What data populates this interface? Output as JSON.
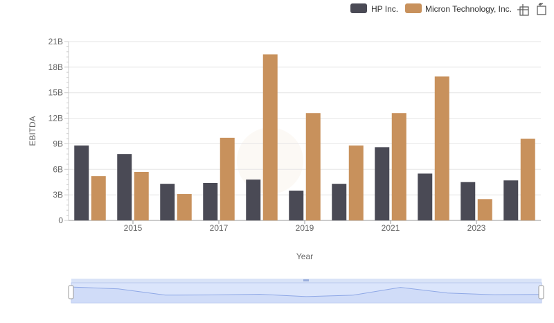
{
  "chart_data": {
    "type": "bar",
    "title": "",
    "xlabel": "Year",
    "ylabel": "EBITDA",
    "ylim": [
      0,
      21
    ],
    "ytick_values": [
      0,
      3,
      6,
      9,
      12,
      15,
      18,
      21
    ],
    "ytick_labels": [
      "0",
      "3B",
      "6B",
      "9B",
      "12B",
      "15B",
      "18B",
      "21B"
    ],
    "categories": [
      "2014",
      "2015",
      "2016",
      "2017",
      "2018",
      "2019",
      "2020",
      "2021",
      "2022",
      "2023",
      "2024"
    ],
    "xtick_labels": [
      "2015",
      "2017",
      "2019",
      "2021",
      "2023"
    ],
    "grid": true,
    "legend_position": "top-right",
    "series": [
      {
        "name": "HP Inc.",
        "color": "#4a4a55",
        "values": [
          8.8,
          7.8,
          4.3,
          4.4,
          4.8,
          3.5,
          4.3,
          8.6,
          5.5,
          4.5,
          4.7
        ]
      },
      {
        "name": "Micron Technology, Inc.",
        "color": "#c8915c",
        "values": [
          5.2,
          5.7,
          3.1,
          9.7,
          19.5,
          12.6,
          8.8,
          12.6,
          16.9,
          2.5,
          9.6
        ]
      }
    ]
  },
  "legend": {
    "items": [
      {
        "label": "HP Inc.",
        "color": "#4a4a55"
      },
      {
        "label": "Micron Technology, Inc.",
        "color": "#c8915c"
      }
    ]
  },
  "toolbar": {
    "zoom_icon": "zoom-icon",
    "reset_icon": "restore-icon"
  },
  "navigator": {
    "fill_color": "#dbe5fb",
    "line_color": "#8fa8e6"
  }
}
